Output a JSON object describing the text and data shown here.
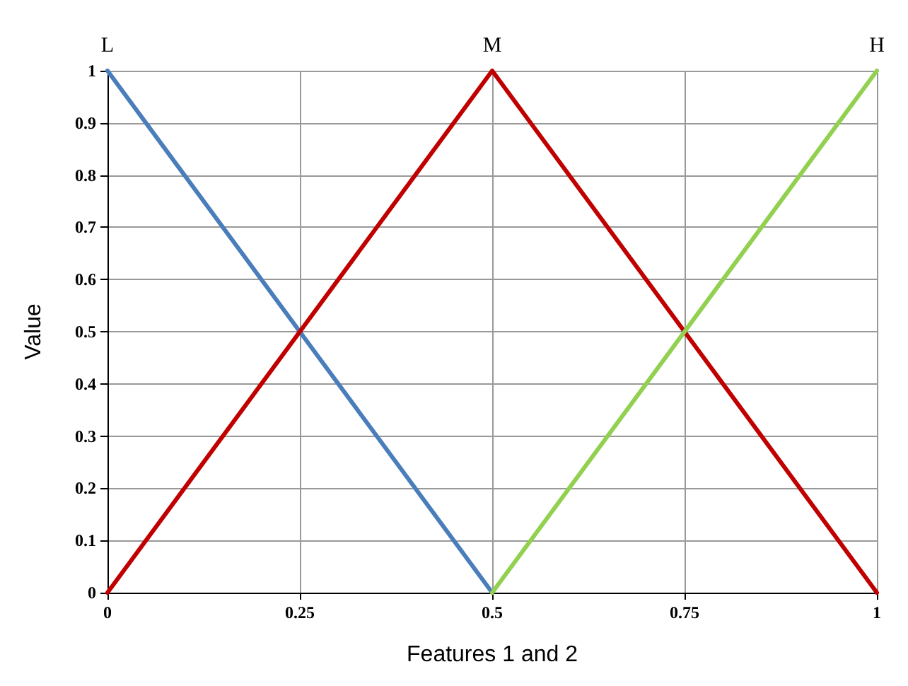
{
  "chart_data": {
    "type": "line",
    "xlabel": "Features 1 and 2",
    "ylabel": "Value",
    "series": [
      {
        "name": "L",
        "color": "#4a7ebb",
        "x": [
          0,
          0.5
        ],
        "values": [
          1,
          0
        ]
      },
      {
        "name": "M",
        "color": "#c00000",
        "x": [
          0,
          0.5,
          1
        ],
        "values": [
          0,
          1,
          0
        ]
      },
      {
        "name": "H",
        "color": "#92d050",
        "x": [
          0.5,
          1
        ],
        "values": [
          0,
          1
        ]
      }
    ],
    "xlim": [
      0,
      1
    ],
    "xticks": [
      0,
      0.25,
      0.5,
      0.75,
      1
    ],
    "ylim": [
      0,
      1
    ],
    "yticks": [
      0,
      0.1,
      0.2,
      0.3,
      0.4,
      0.5,
      0.6,
      0.7,
      0.8,
      0.9,
      1
    ],
    "grid": true,
    "legend": false,
    "marker": "none",
    "line_style": "solid"
  }
}
